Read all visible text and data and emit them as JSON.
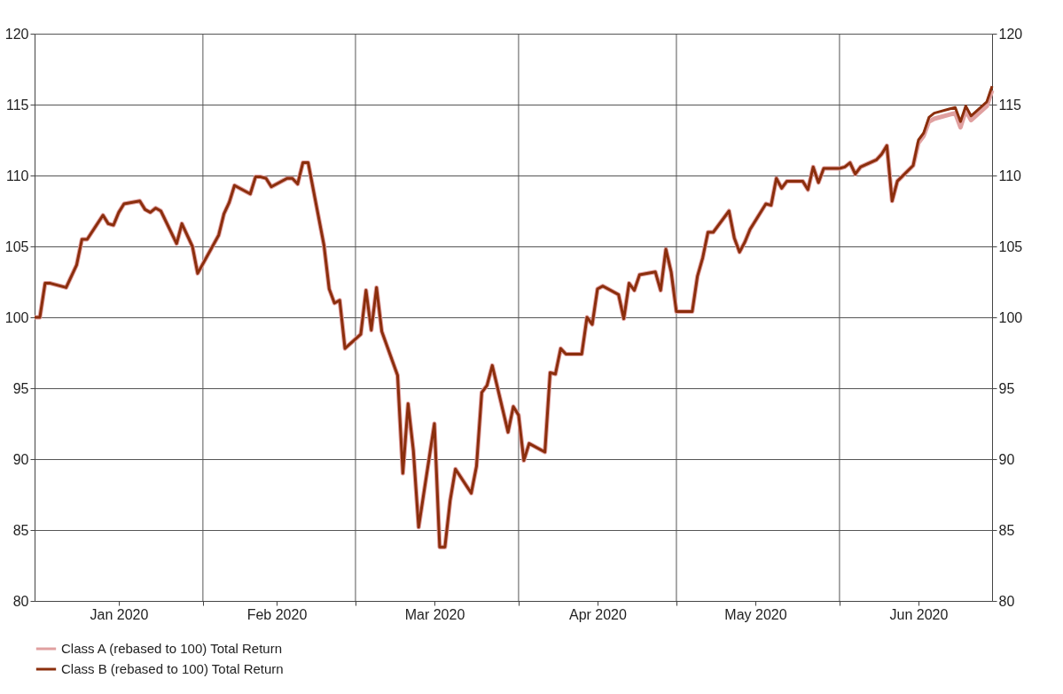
{
  "chart_data": {
    "type": "line",
    "x": [
      "2019-12-31",
      "2020-01-01",
      "2020-01-02",
      "2020-01-03",
      "2020-01-06",
      "2020-01-08",
      "2020-01-09",
      "2020-01-10",
      "2020-01-13",
      "2020-01-14",
      "2020-01-15",
      "2020-01-16",
      "2020-01-17",
      "2020-01-20",
      "2020-01-21",
      "2020-01-22",
      "2020-01-23",
      "2020-01-24",
      "2020-01-27",
      "2020-01-28",
      "2020-01-30",
      "2020-01-31",
      "2020-02-04",
      "2020-02-05",
      "2020-02-06",
      "2020-02-07",
      "2020-02-10",
      "2020-02-11",
      "2020-02-12",
      "2020-02-13",
      "2020-02-14",
      "2020-02-17",
      "2020-02-18",
      "2020-02-19",
      "2020-02-20",
      "2020-02-21",
      "2020-02-24",
      "2020-02-25",
      "2020-02-26",
      "2020-02-27",
      "2020-02-28",
      "2020-03-02",
      "2020-03-03",
      "2020-03-04",
      "2020-03-05",
      "2020-03-06",
      "2020-03-09",
      "2020-03-10",
      "2020-03-11",
      "2020-03-12",
      "2020-03-13",
      "2020-03-16",
      "2020-03-17",
      "2020-03-18",
      "2020-03-19",
      "2020-03-20",
      "2020-03-23",
      "2020-03-24",
      "2020-03-25",
      "2020-03-26",
      "2020-03-27",
      "2020-03-30",
      "2020-03-31",
      "2020-04-01",
      "2020-04-02",
      "2020-04-03",
      "2020-04-06",
      "2020-04-07",
      "2020-04-08",
      "2020-04-09",
      "2020-04-10",
      "2020-04-13",
      "2020-04-14",
      "2020-04-15",
      "2020-04-16",
      "2020-04-17",
      "2020-04-20",
      "2020-04-21",
      "2020-04-22",
      "2020-04-23",
      "2020-04-24",
      "2020-04-27",
      "2020-04-28",
      "2020-04-29",
      "2020-04-30",
      "2020-05-01",
      "2020-05-04",
      "2020-05-05",
      "2020-05-06",
      "2020-05-07",
      "2020-05-08",
      "2020-05-11",
      "2020-05-12",
      "2020-05-13",
      "2020-05-14",
      "2020-05-15",
      "2020-05-18",
      "2020-05-19",
      "2020-05-20",
      "2020-05-21",
      "2020-05-22",
      "2020-05-25",
      "2020-05-26",
      "2020-05-27",
      "2020-05-28",
      "2020-05-29",
      "2020-06-01",
      "2020-06-02",
      "2020-06-03",
      "2020-06-04",
      "2020-06-05",
      "2020-06-08",
      "2020-06-09",
      "2020-06-10",
      "2020-06-11",
      "2020-06-12",
      "2020-06-15",
      "2020-06-16",
      "2020-06-17",
      "2020-06-18",
      "2020-06-19",
      "2020-06-22",
      "2020-06-23",
      "2020-06-24",
      "2020-06-25",
      "2020-06-26",
      "2020-06-29",
      "2020-06-30"
    ],
    "series": [
      {
        "name": "Class A (rebased to 100) Total Return",
        "color": "#e0a0a0",
        "values": [
          100.0,
          100.0,
          102.4,
          102.4,
          102.1,
          103.7,
          105.5,
          105.5,
          107.2,
          106.6,
          106.5,
          107.4,
          108.0,
          108.2,
          107.6,
          107.4,
          107.7,
          107.5,
          105.2,
          106.6,
          105.0,
          103.1,
          105.8,
          107.3,
          108.1,
          109.3,
          108.7,
          109.9,
          109.9,
          109.8,
          109.2,
          109.8,
          109.8,
          109.4,
          110.9,
          110.9,
          105.1,
          102.0,
          101.0,
          101.2,
          97.8,
          98.8,
          101.9,
          99.1,
          102.1,
          99.0,
          95.9,
          89.0,
          93.9,
          90.6,
          85.2,
          92.5,
          83.8,
          83.8,
          87.1,
          89.3,
          87.6,
          89.5,
          94.7,
          95.2,
          96.6,
          91.9,
          93.7,
          93.1,
          89.9,
          91.1,
          90.5,
          96.1,
          96.0,
          97.8,
          97.4,
          97.4,
          100.0,
          99.5,
          102.0,
          102.2,
          101.6,
          99.9,
          102.4,
          101.9,
          103.0,
          103.2,
          101.9,
          104.8,
          103.2,
          100.4,
          100.4,
          102.9,
          104.2,
          106.0,
          106.0,
          107.5,
          105.6,
          104.6,
          105.3,
          106.2,
          108.0,
          107.9,
          109.8,
          109.1,
          109.6,
          109.6,
          109.0,
          110.6,
          109.5,
          110.5,
          110.5,
          110.6,
          110.9,
          110.1,
          110.6,
          111.1,
          111.5,
          112.1,
          108.2,
          109.6,
          110.7,
          112.3,
          112.8,
          113.8,
          114.0,
          114.3,
          114.4,
          113.4,
          114.6,
          113.9,
          114.9,
          116.0
        ]
      },
      {
        "name": "Class B (rebased to 100) Total Return",
        "color": "#8b2e0c",
        "values": [
          100.0,
          100.0,
          102.4,
          102.4,
          102.1,
          103.7,
          105.5,
          105.5,
          107.2,
          106.6,
          106.5,
          107.4,
          108.0,
          108.2,
          107.6,
          107.4,
          107.7,
          107.5,
          105.2,
          106.6,
          105.0,
          103.1,
          105.8,
          107.3,
          108.1,
          109.3,
          108.7,
          109.9,
          109.9,
          109.8,
          109.2,
          109.8,
          109.8,
          109.4,
          110.9,
          110.9,
          105.1,
          102.0,
          101.0,
          101.2,
          97.8,
          98.8,
          101.9,
          99.1,
          102.1,
          99.0,
          95.9,
          89.0,
          93.9,
          90.6,
          85.2,
          92.5,
          83.8,
          83.8,
          87.1,
          89.3,
          87.6,
          89.5,
          94.7,
          95.2,
          96.6,
          91.9,
          93.7,
          93.1,
          89.9,
          91.1,
          90.5,
          96.1,
          96.0,
          97.8,
          97.4,
          97.4,
          100.0,
          99.5,
          102.0,
          102.2,
          101.6,
          99.9,
          102.4,
          101.9,
          103.0,
          103.2,
          101.9,
          104.8,
          103.2,
          100.4,
          100.4,
          102.9,
          104.2,
          106.0,
          106.0,
          107.5,
          105.6,
          104.6,
          105.3,
          106.2,
          108.0,
          107.9,
          109.8,
          109.1,
          109.6,
          109.6,
          109.0,
          110.6,
          109.5,
          110.5,
          110.5,
          110.6,
          110.9,
          110.1,
          110.6,
          111.1,
          111.5,
          112.1,
          108.2,
          109.6,
          110.7,
          112.5,
          113.0,
          114.1,
          114.4,
          114.7,
          114.8,
          113.8,
          114.9,
          114.2,
          115.2,
          116.3
        ]
      }
    ],
    "xlim": [
      "2019-12-31",
      "2020-06-30"
    ],
    "xticks": [
      {
        "value": "2020-02-01",
        "label": null
      },
      {
        "value": "2020-03-01",
        "label": null
      },
      {
        "value": "2020-04-01",
        "label": null
      },
      {
        "value": "2020-05-01",
        "label": null
      },
      {
        "value": "2020-06-01",
        "label": null
      },
      {
        "value": "2020-01-16",
        "label": "Jan 2020"
      },
      {
        "value": "2020-02-15",
        "label": "Feb 2020"
      },
      {
        "value": "2020-03-16",
        "label": "Mar 2020"
      },
      {
        "value": "2020-04-16",
        "label": "Apr 2020"
      },
      {
        "value": "2020-05-16",
        "label": "May 2020"
      },
      {
        "value": "2020-06-16",
        "label": "Jun 2020"
      }
    ],
    "ylim": [
      80,
      120
    ],
    "yticks": [
      80,
      85,
      90,
      95,
      100,
      105,
      110,
      115,
      120
    ],
    "y2lim": [
      80,
      120
    ],
    "y2ticks": [
      80,
      85,
      90,
      95,
      100,
      105,
      110,
      115,
      120
    ],
    "grid": true,
    "legend": "bottom",
    "line_style": "solid",
    "marker": "none"
  }
}
